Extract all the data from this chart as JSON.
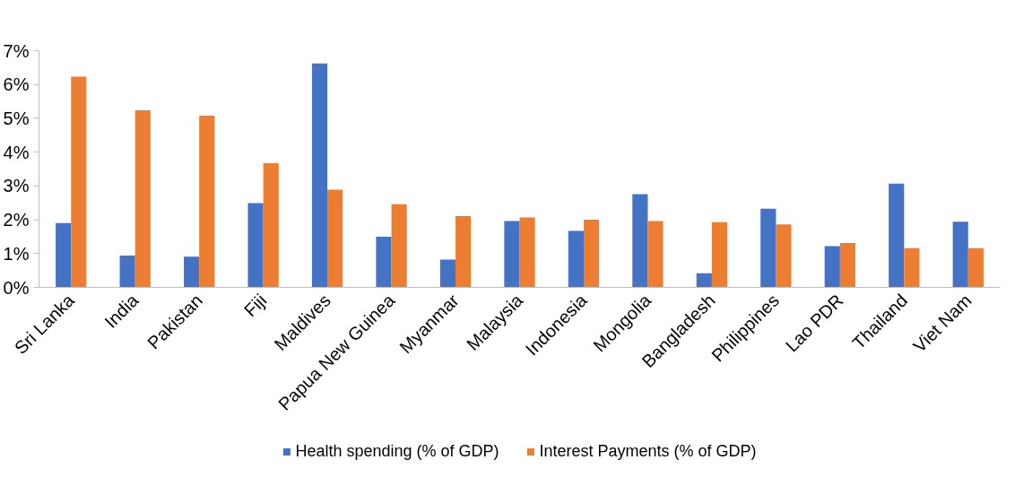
{
  "chart_data": {
    "type": "bar",
    "categories": [
      "Sri Lanka",
      "India",
      "Pakistan",
      "Fiji",
      "Maldives",
      "Papua New Guinea",
      "Myanmar",
      "Malaysia",
      "Indonesia",
      "Mongolia",
      "Bangladesh",
      "Philippines",
      "Lao PDR",
      "Thailand",
      "Viet Nam"
    ],
    "series": [
      {
        "name": "Health spending (% of GDP)",
        "color": "#4472c4",
        "values": [
          1.9,
          0.94,
          0.91,
          2.49,
          6.62,
          1.5,
          0.82,
          1.96,
          1.67,
          2.76,
          0.42,
          2.33,
          1.22,
          3.07,
          1.94
        ]
      },
      {
        "name": "Interest Payments (% of GDP)",
        "color": "#ed7d31",
        "values": [
          6.23,
          5.24,
          5.08,
          3.67,
          2.89,
          2.46,
          2.11,
          2.07,
          2.0,
          1.96,
          1.93,
          1.86,
          1.31,
          1.16,
          1.16
        ]
      }
    ],
    "ylim": [
      0,
      7
    ],
    "yticks": [
      {
        "value": 0,
        "label": "0%"
      },
      {
        "value": 1,
        "label": "1%"
      },
      {
        "value": 2,
        "label": "2%"
      },
      {
        "value": 3,
        "label": "3%"
      },
      {
        "value": 4,
        "label": "4%"
      },
      {
        "value": 5,
        "label": "5%"
      },
      {
        "value": 6,
        "label": "6%"
      },
      {
        "value": 7,
        "label": "7%"
      }
    ],
    "grid": false,
    "legend": "bottom"
  }
}
